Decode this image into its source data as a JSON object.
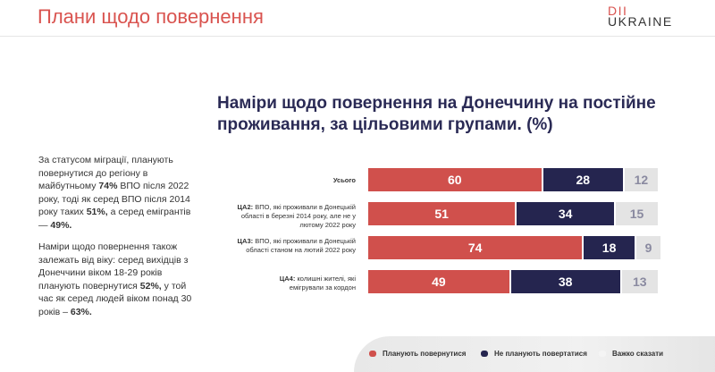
{
  "header": {
    "title": "Плани щодо повернення",
    "logo_top": "DII",
    "logo_bottom": "UKRAINE"
  },
  "sidebar": {
    "p1": [
      {
        "t": "За статусом міграції, планують повернутися до регіону в майбутньому "
      },
      {
        "b": "74%"
      },
      {
        "t": " ВПО після 2022 року, тоді як серед ВПО після 2014 року таких "
      },
      {
        "b": "51%,"
      },
      {
        "t": " а серед емігрантів — "
      },
      {
        "b": "49%."
      }
    ],
    "p2": [
      {
        "t": "Наміри щодо повернення також залежать від віку: серед вихідців з Донеччини віком 18-29 років планують повернутися "
      },
      {
        "b": "52%,"
      },
      {
        "t": " у той час як серед людей віком понад 30 років – "
      },
      {
        "b": "63%."
      }
    ]
  },
  "chart_data": {
    "type": "bar",
    "orientation": "horizontal",
    "stacked": true,
    "title": "Наміри щодо повернення на Донеччину на постійне проживання, за цільовими групами. (%)",
    "categories": [
      {
        "code": "",
        "text": "Усього"
      },
      {
        "code": "ЦА2:",
        "text": " ВПО, які проживали в Донецькій області в березні 2014 року, але не у лютому 2022 року"
      },
      {
        "code": "ЦА3:",
        "text": " ВПО, які проживали в Донецькій області станом на лютий 2022 року"
      },
      {
        "code": "ЦА4:",
        "text": " колишні жителі, які емігрували за кордон"
      }
    ],
    "series": [
      {
        "name": "Планують повернутися",
        "color": "#d0504c",
        "values": [
          60,
          51,
          74,
          49
        ]
      },
      {
        "name": "Не планують повертатися",
        "color": "#25254f",
        "values": [
          28,
          34,
          18,
          38
        ]
      },
      {
        "name": "Важко сказати",
        "color": "#e4e4e4",
        "values": [
          12,
          15,
          9,
          13
        ]
      }
    ],
    "legend": "bottom",
    "xlim": [
      0,
      100
    ]
  }
}
